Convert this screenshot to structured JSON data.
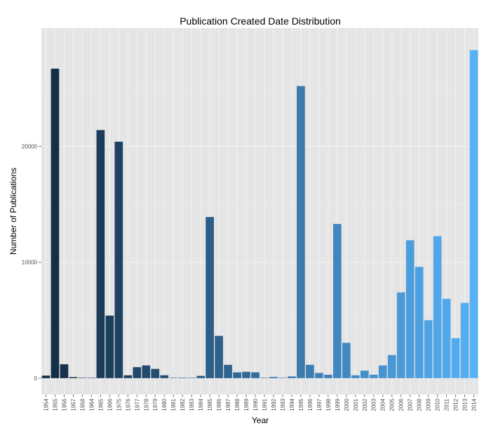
{
  "chart_data": {
    "type": "bar",
    "title": "Publication Created Date Distribution",
    "xlabel": "Year",
    "ylabel": "Number of Publications",
    "ylim": [
      -1400,
      30200
    ],
    "yticks": [
      0,
      10000,
      20000
    ],
    "ytick_labels": [
      "0",
      "10000",
      "20000"
    ],
    "grid": true,
    "legend": "none",
    "colors": {
      "panel": "#e5e5e5",
      "grid": "#f2f2f2",
      "bar_low": "#132b43",
      "bar_high": "#56b1f7"
    },
    "categories": [
      "1954",
      "1955",
      "1956",
      "1957",
      "1958",
      "1964",
      "1965",
      "1966",
      "1975",
      "1976",
      "1977",
      "1978",
      "1979",
      "1980",
      "1981",
      "1982",
      "1983",
      "1984",
      "1985",
      "1986",
      "1987",
      "1988",
      "1989",
      "1990",
      "1991",
      "1992",
      "1993",
      "1994",
      "1995",
      "1996",
      "1997",
      "1998",
      "1999",
      "2000",
      "2001",
      "2002",
      "2003",
      "2004",
      "2005",
      "2006",
      "2007",
      "2008",
      "2009",
      "2010",
      "2011",
      "2012",
      "2013",
      "2014"
    ],
    "values": [
      220,
      26700,
      1200,
      90,
      10,
      10,
      21400,
      5400,
      20400,
      250,
      950,
      1100,
      800,
      250,
      10,
      40,
      10,
      200,
      13900,
      3650,
      1150,
      500,
      550,
      500,
      40,
      100,
      30,
      150,
      25200,
      1150,
      450,
      300,
      13300,
      3050,
      250,
      650,
      300,
      1100,
      2000,
      7400,
      11900,
      9600,
      5000,
      12250,
      6850,
      3450,
      6500,
      28300
    ]
  }
}
